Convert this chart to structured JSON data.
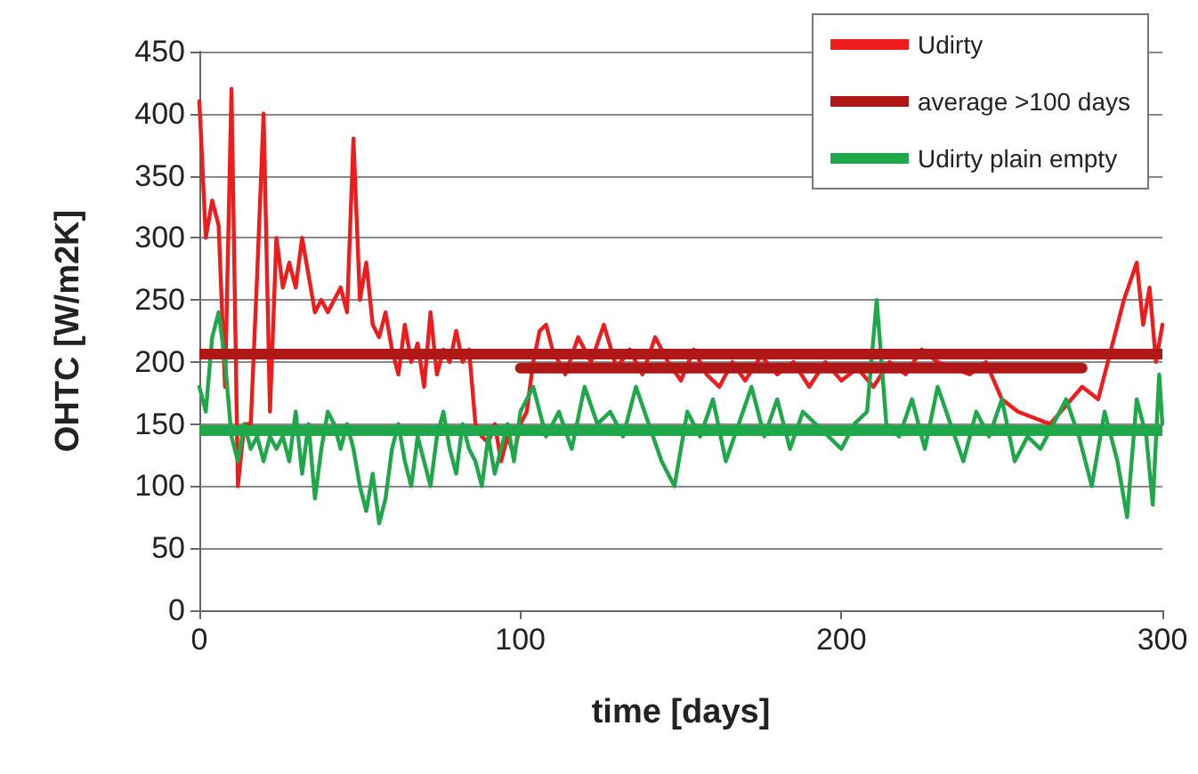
{
  "chart_data": {
    "type": "line",
    "xlabel": "time [days]",
    "ylabel": "OHTC [W/m2K]",
    "xlim": [
      0,
      300
    ],
    "xticks": [
      0,
      100,
      200,
      300
    ],
    "ylim": [
      0,
      450
    ],
    "yticks": [
      0,
      50,
      100,
      150,
      200,
      250,
      300,
      350,
      400,
      450
    ],
    "grid": "y",
    "legend": "top right",
    "marker": "none",
    "line_style": "solid",
    "series": [
      {
        "name": "Udirty",
        "color": "#ee1c1c",
        "x": [
          0,
          2,
          4,
          6,
          8,
          10,
          12,
          14,
          16,
          18,
          20,
          22,
          24,
          26,
          28,
          30,
          32,
          34,
          36,
          38,
          40,
          42,
          44,
          46,
          48,
          50,
          52,
          54,
          56,
          58,
          60,
          62,
          64,
          66,
          68,
          70,
          72,
          74,
          76,
          78,
          80,
          82,
          84,
          86,
          88,
          90,
          92,
          94,
          96,
          98,
          100,
          102,
          104,
          106,
          108,
          110,
          114,
          118,
          122,
          126,
          130,
          134,
          138,
          142,
          146,
          150,
          154,
          158,
          162,
          166,
          170,
          175,
          180,
          185,
          190,
          195,
          200,
          205,
          210,
          215,
          220,
          225,
          230,
          235,
          240,
          245,
          250,
          255,
          260,
          265,
          270,
          275,
          280,
          284,
          288,
          292,
          294,
          296,
          298,
          300
        ],
        "values": [
          410,
          300,
          330,
          310,
          180,
          420,
          100,
          150,
          150,
          270,
          400,
          160,
          300,
          260,
          280,
          260,
          300,
          270,
          240,
          250,
          240,
          250,
          260,
          240,
          380,
          250,
          280,
          230,
          220,
          240,
          210,
          190,
          230,
          200,
          215,
          180,
          240,
          190,
          210,
          200,
          225,
          200,
          210,
          150,
          140,
          135,
          150,
          120,
          140,
          125,
          150,
          160,
          200,
          225,
          230,
          210,
          190,
          220,
          200,
          230,
          195,
          210,
          190,
          220,
          200,
          185,
          210,
          190,
          180,
          200,
          185,
          205,
          190,
          200,
          180,
          200,
          185,
          195,
          180,
          200,
          190,
          210,
          200,
          195,
          190,
          200,
          170,
          160,
          155,
          150,
          165,
          180,
          170,
          210,
          250,
          280,
          230,
          260,
          200,
          230
        ]
      },
      {
        "name": "average >100 days",
        "color": "#b01818",
        "x": [
          100,
          275
        ],
        "values": [
          195,
          195
        ]
      },
      {
        "name": "Udirty plain empty",
        "color": "#1fa84a",
        "x": [
          0,
          2,
          4,
          6,
          8,
          10,
          12,
          14,
          16,
          18,
          20,
          22,
          24,
          26,
          28,
          30,
          32,
          34,
          36,
          38,
          40,
          42,
          44,
          46,
          48,
          50,
          52,
          54,
          56,
          58,
          60,
          62,
          64,
          66,
          68,
          70,
          72,
          74,
          76,
          78,
          80,
          82,
          84,
          86,
          88,
          90,
          92,
          94,
          96,
          98,
          100,
          104,
          108,
          112,
          116,
          120,
          124,
          128,
          132,
          136,
          140,
          144,
          148,
          152,
          156,
          160,
          164,
          168,
          172,
          176,
          180,
          184,
          188,
          192,
          196,
          200,
          204,
          208,
          211,
          214,
          218,
          222,
          226,
          230,
          234,
          238,
          242,
          246,
          250,
          254,
          258,
          262,
          266,
          270,
          274,
          278,
          282,
          286,
          289,
          292,
          295,
          297,
          299,
          300
        ],
        "values": [
          180,
          160,
          220,
          240,
          200,
          140,
          120,
          150,
          130,
          140,
          120,
          140,
          130,
          140,
          120,
          160,
          110,
          150,
          90,
          130,
          160,
          150,
          130,
          150,
          130,
          100,
          80,
          110,
          70,
          90,
          130,
          150,
          120,
          100,
          140,
          120,
          100,
          140,
          160,
          130,
          110,
          150,
          130,
          120,
          100,
          140,
          110,
          130,
          150,
          120,
          160,
          180,
          140,
          160,
          130,
          180,
          150,
          160,
          140,
          180,
          150,
          120,
          100,
          160,
          140,
          170,
          120,
          150,
          180,
          140,
          170,
          130,
          160,
          150,
          140,
          130,
          150,
          160,
          250,
          150,
          140,
          170,
          130,
          180,
          150,
          120,
          160,
          140,
          170,
          120,
          140,
          130,
          150,
          170,
          140,
          100,
          160,
          120,
          75,
          170,
          140,
          85,
          190,
          150
        ]
      }
    ],
    "ref_lines": [
      {
        "axis": "y",
        "value": 207,
        "color": "#b01818"
      },
      {
        "axis": "y",
        "value": 145,
        "color": "#1fa84a"
      }
    ]
  }
}
